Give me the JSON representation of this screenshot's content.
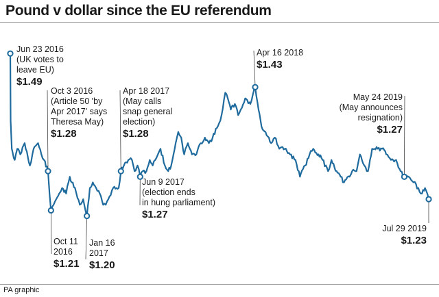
{
  "title": "Pound v dollar since the EU referendum",
  "footer": "PA graphic",
  "colors": {
    "line": "#1f6b9e",
    "annotation_line": "#444444",
    "rule": "#9a9a9a"
  },
  "chart_data": {
    "type": "line",
    "title": "Pound v dollar since the EU referendum",
    "x_range": [
      "2016-06-23",
      "2019-07-29"
    ],
    "y_range": [
      1.18,
      1.5
    ],
    "grid": false,
    "legend": "none",
    "unit": "$",
    "series": [
      {
        "x": [
          "2016-06-23",
          "2016-06-24",
          "2016-06-27",
          "2016-07-05",
          "2016-07-12",
          "2016-07-20",
          "2016-08-01",
          "2016-08-15",
          "2016-08-25",
          "2016-09-06",
          "2016-09-15",
          "2016-09-22",
          "2016-10-03",
          "2016-10-07",
          "2016-10-11",
          "2016-10-18",
          "2016-10-25",
          "2016-11-02",
          "2016-11-10",
          "2016-11-21",
          "2016-12-01",
          "2016-12-06",
          "2016-12-15",
          "2016-12-28",
          "2017-01-06",
          "2017-01-16",
          "2017-01-24",
          "2017-02-01",
          "2017-02-10",
          "2017-02-20",
          "2017-03-01",
          "2017-03-08",
          "2017-03-15",
          "2017-03-28",
          "2017-04-06",
          "2017-04-12",
          "2017-04-18",
          "2017-04-26",
          "2017-05-08",
          "2017-05-18",
          "2017-05-25",
          "2017-06-02",
          "2017-06-09",
          "2017-06-16",
          "2017-06-26",
          "2017-07-05",
          "2017-07-13",
          "2017-07-20",
          "2017-07-27",
          "2017-08-03",
          "2017-08-15",
          "2017-08-24",
          "2017-09-01",
          "2017-09-13",
          "2017-09-20",
          "2017-09-28",
          "2017-10-06",
          "2017-10-16",
          "2017-10-27",
          "2017-11-08",
          "2017-11-20",
          "2017-12-01",
          "2017-12-12",
          "2017-12-22",
          "2018-01-05",
          "2018-01-15",
          "2018-01-25",
          "2018-02-01",
          "2018-02-09",
          "2018-02-20",
          "2018-03-01",
          "2018-03-08",
          "2018-03-20",
          "2018-04-03",
          "2018-04-16",
          "2018-04-25",
          "2018-05-03",
          "2018-05-14",
          "2018-05-29",
          "2018-06-08",
          "2018-06-20",
          "2018-07-05",
          "2018-07-19",
          "2018-08-03",
          "2018-08-15",
          "2018-08-29",
          "2018-09-10",
          "2018-09-20",
          "2018-10-04",
          "2018-10-15",
          "2018-10-30",
          "2018-11-08",
          "2018-11-22",
          "2018-12-03",
          "2018-12-12",
          "2018-12-27",
          "2019-01-03",
          "2019-01-15",
          "2019-01-24",
          "2019-02-05",
          "2019-02-15",
          "2019-02-26",
          "2019-03-13",
          "2019-03-25",
          "2019-04-05",
          "2019-04-18",
          "2019-05-02",
          "2019-05-14",
          "2019-05-24",
          "2019-06-05",
          "2019-06-18",
          "2019-07-01",
          "2019-07-11",
          "2019-07-19",
          "2019-07-29"
        ],
        "y": [
          1.49,
          1.37,
          1.32,
          1.3,
          1.32,
          1.31,
          1.33,
          1.29,
          1.32,
          1.33,
          1.31,
          1.3,
          1.28,
          1.24,
          1.21,
          1.22,
          1.23,
          1.24,
          1.25,
          1.24,
          1.27,
          1.26,
          1.25,
          1.22,
          1.23,
          1.2,
          1.25,
          1.26,
          1.25,
          1.24,
          1.22,
          1.22,
          1.23,
          1.25,
          1.25,
          1.25,
          1.28,
          1.29,
          1.3,
          1.3,
          1.28,
          1.29,
          1.27,
          1.28,
          1.28,
          1.3,
          1.29,
          1.3,
          1.31,
          1.32,
          1.29,
          1.28,
          1.29,
          1.33,
          1.35,
          1.34,
          1.31,
          1.33,
          1.31,
          1.31,
          1.33,
          1.34,
          1.33,
          1.34,
          1.36,
          1.38,
          1.42,
          1.41,
          1.39,
          1.4,
          1.38,
          1.39,
          1.41,
          1.4,
          1.43,
          1.39,
          1.36,
          1.35,
          1.33,
          1.34,
          1.32,
          1.32,
          1.31,
          1.3,
          1.27,
          1.29,
          1.31,
          1.32,
          1.31,
          1.3,
          1.28,
          1.3,
          1.28,
          1.27,
          1.26,
          1.27,
          1.28,
          1.28,
          1.31,
          1.29,
          1.28,
          1.32,
          1.32,
          1.32,
          1.31,
          1.3,
          1.3,
          1.28,
          1.27,
          1.27,
          1.26,
          1.25,
          1.24,
          1.25,
          1.23
        ]
      }
    ],
    "annotations": [
      {
        "x": "2016-06-23",
        "y": 1.49,
        "date": "Jun 23 2016",
        "note": [
          "(UK votes to",
          "leave EU)"
        ],
        "value": "$1.49"
      },
      {
        "x": "2016-10-03",
        "y": 1.28,
        "date": "Oct 3 2016",
        "note": [
          "(Article 50 'by",
          "Apr 2017' says",
          "Theresa May)"
        ],
        "value": "$1.28"
      },
      {
        "x": "2016-10-11",
        "y": 1.21,
        "date": "Oct 11",
        "note": [
          "2016"
        ],
        "value": "$1.21"
      },
      {
        "x": "2017-01-16",
        "y": 1.2,
        "date": "Jan 16",
        "note": [
          "2017"
        ],
        "value": "$1.20"
      },
      {
        "x": "2017-04-18",
        "y": 1.28,
        "date": "Apr 18 2017",
        "note": [
          "(May calls",
          "snap general",
          "election)"
        ],
        "value": "$1.28"
      },
      {
        "x": "2017-06-09",
        "y": 1.27,
        "date": "Jun 9 2017",
        "note": [
          "(election ends",
          "in hung parliament)"
        ],
        "value": "$1.27"
      },
      {
        "x": "2018-04-16",
        "y": 1.43,
        "date": "Apr 16 2018",
        "note": [],
        "value": "$1.43"
      },
      {
        "x": "2019-05-24",
        "y": 1.27,
        "date": "May 24 2019",
        "note": [
          "(May announces",
          "resignation)"
        ],
        "value": "$1.27"
      },
      {
        "x": "2019-07-29",
        "y": 1.23,
        "date": "Jul 29 2019",
        "note": [],
        "value": "$1.23"
      }
    ]
  }
}
